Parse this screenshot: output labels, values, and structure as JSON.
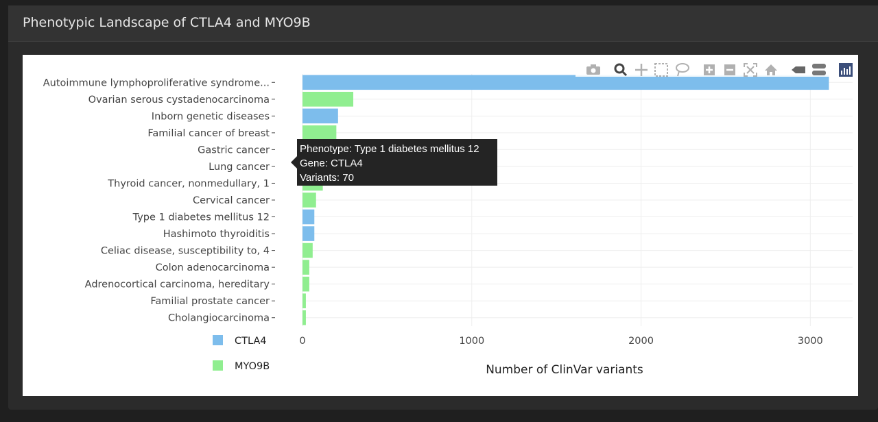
{
  "card": {
    "title": "Phenotypic Landscape of CTLA4 and MYO9B"
  },
  "colors": {
    "CTLA4": "#7dbdec",
    "MYO9B": "#90ee90",
    "grid": "#eeeeee",
    "page_bg": "#1f1f1f",
    "card_bg": "#2b2b2b"
  },
  "modebar": {
    "icons": [
      "camera-icon",
      "zoom-icon",
      "pan-icon",
      "box-select-icon",
      "lasso-select-icon",
      "zoom-in-icon",
      "zoom-out-icon",
      "autoscale-icon",
      "reset-axes-icon",
      "spike-lines-icon",
      "compare-hover-icon",
      "plotly-logo-icon"
    ]
  },
  "tooltip": {
    "phenotype": "Phenotype: Type 1 diabetes mellitus 12",
    "gene": "Gene: CTLA4",
    "variants": "Variants: 70"
  },
  "chart_data": {
    "type": "bar",
    "orientation": "horizontal",
    "title": "",
    "xlabel": "Number of ClinVar variants",
    "ylabel": "",
    "xlim": [
      0,
      3250
    ],
    "xticks": [
      0,
      1000,
      2000,
      3000
    ],
    "xtick_labels": [
      "0",
      "1000",
      "2000",
      "3000"
    ],
    "grid": true,
    "legend_position": "bottom-left",
    "legend": [
      "CTLA4",
      "MYO9B"
    ],
    "categories": [
      "Autoimmune lymphoproliferative syndrome...",
      "Ovarian serous cystadenocarcinoma",
      "Inborn genetic diseases",
      "Familial cancer of breast",
      "Gastric cancer",
      "Lung cancer",
      "Thyroid cancer, nonmedullary, 1",
      "Cervical cancer",
      "Type 1 diabetes mellitus 12",
      "Hashimoto thyroiditis",
      "Celiac disease, susceptibility to, 4",
      "Colon adenocarcinoma",
      "Adrenocortical carcinoma, hereditary",
      "Familial prostate cancer",
      "Cholangiocarcinoma"
    ],
    "values": [
      3110,
      300,
      210,
      200,
      145,
      140,
      120,
      80,
      70,
      70,
      60,
      40,
      40,
      20,
      20
    ],
    "genes": [
      "CTLA4",
      "MYO9B",
      "CTLA4",
      "MYO9B",
      "MYO9B",
      "MYO9B",
      "MYO9B",
      "MYO9B",
      "CTLA4",
      "CTLA4",
      "MYO9B",
      "MYO9B",
      "MYO9B",
      "MYO9B",
      "MYO9B"
    ]
  }
}
